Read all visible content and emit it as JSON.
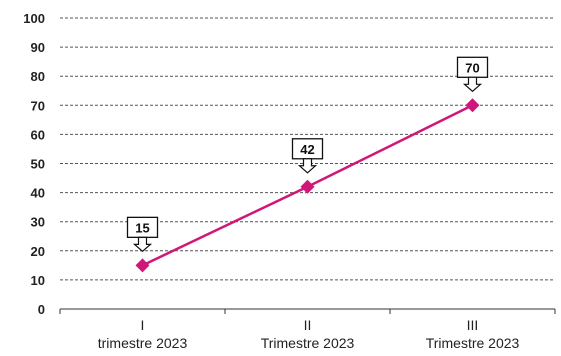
{
  "chart_data": {
    "type": "line",
    "title": "",
    "xlabel": "",
    "ylabel": "",
    "ylim": [
      0,
      100
    ],
    "yticks": [
      "0",
      "10",
      "20",
      "30",
      "40",
      "50",
      "60",
      "70",
      "80",
      "90",
      "100"
    ],
    "grid": "horizontal dashed",
    "categories": [
      [
        "I",
        "trimestre 2023"
      ],
      [
        "II",
        "Trimestre 2023"
      ],
      [
        "III",
        "Trimestre 2023"
      ]
    ],
    "values": [
      15,
      42,
      70
    ],
    "data_labels": [
      "15",
      "42",
      "70"
    ],
    "series_color": "#d1167a",
    "data_label_style": "callout box with arrow above each point"
  }
}
